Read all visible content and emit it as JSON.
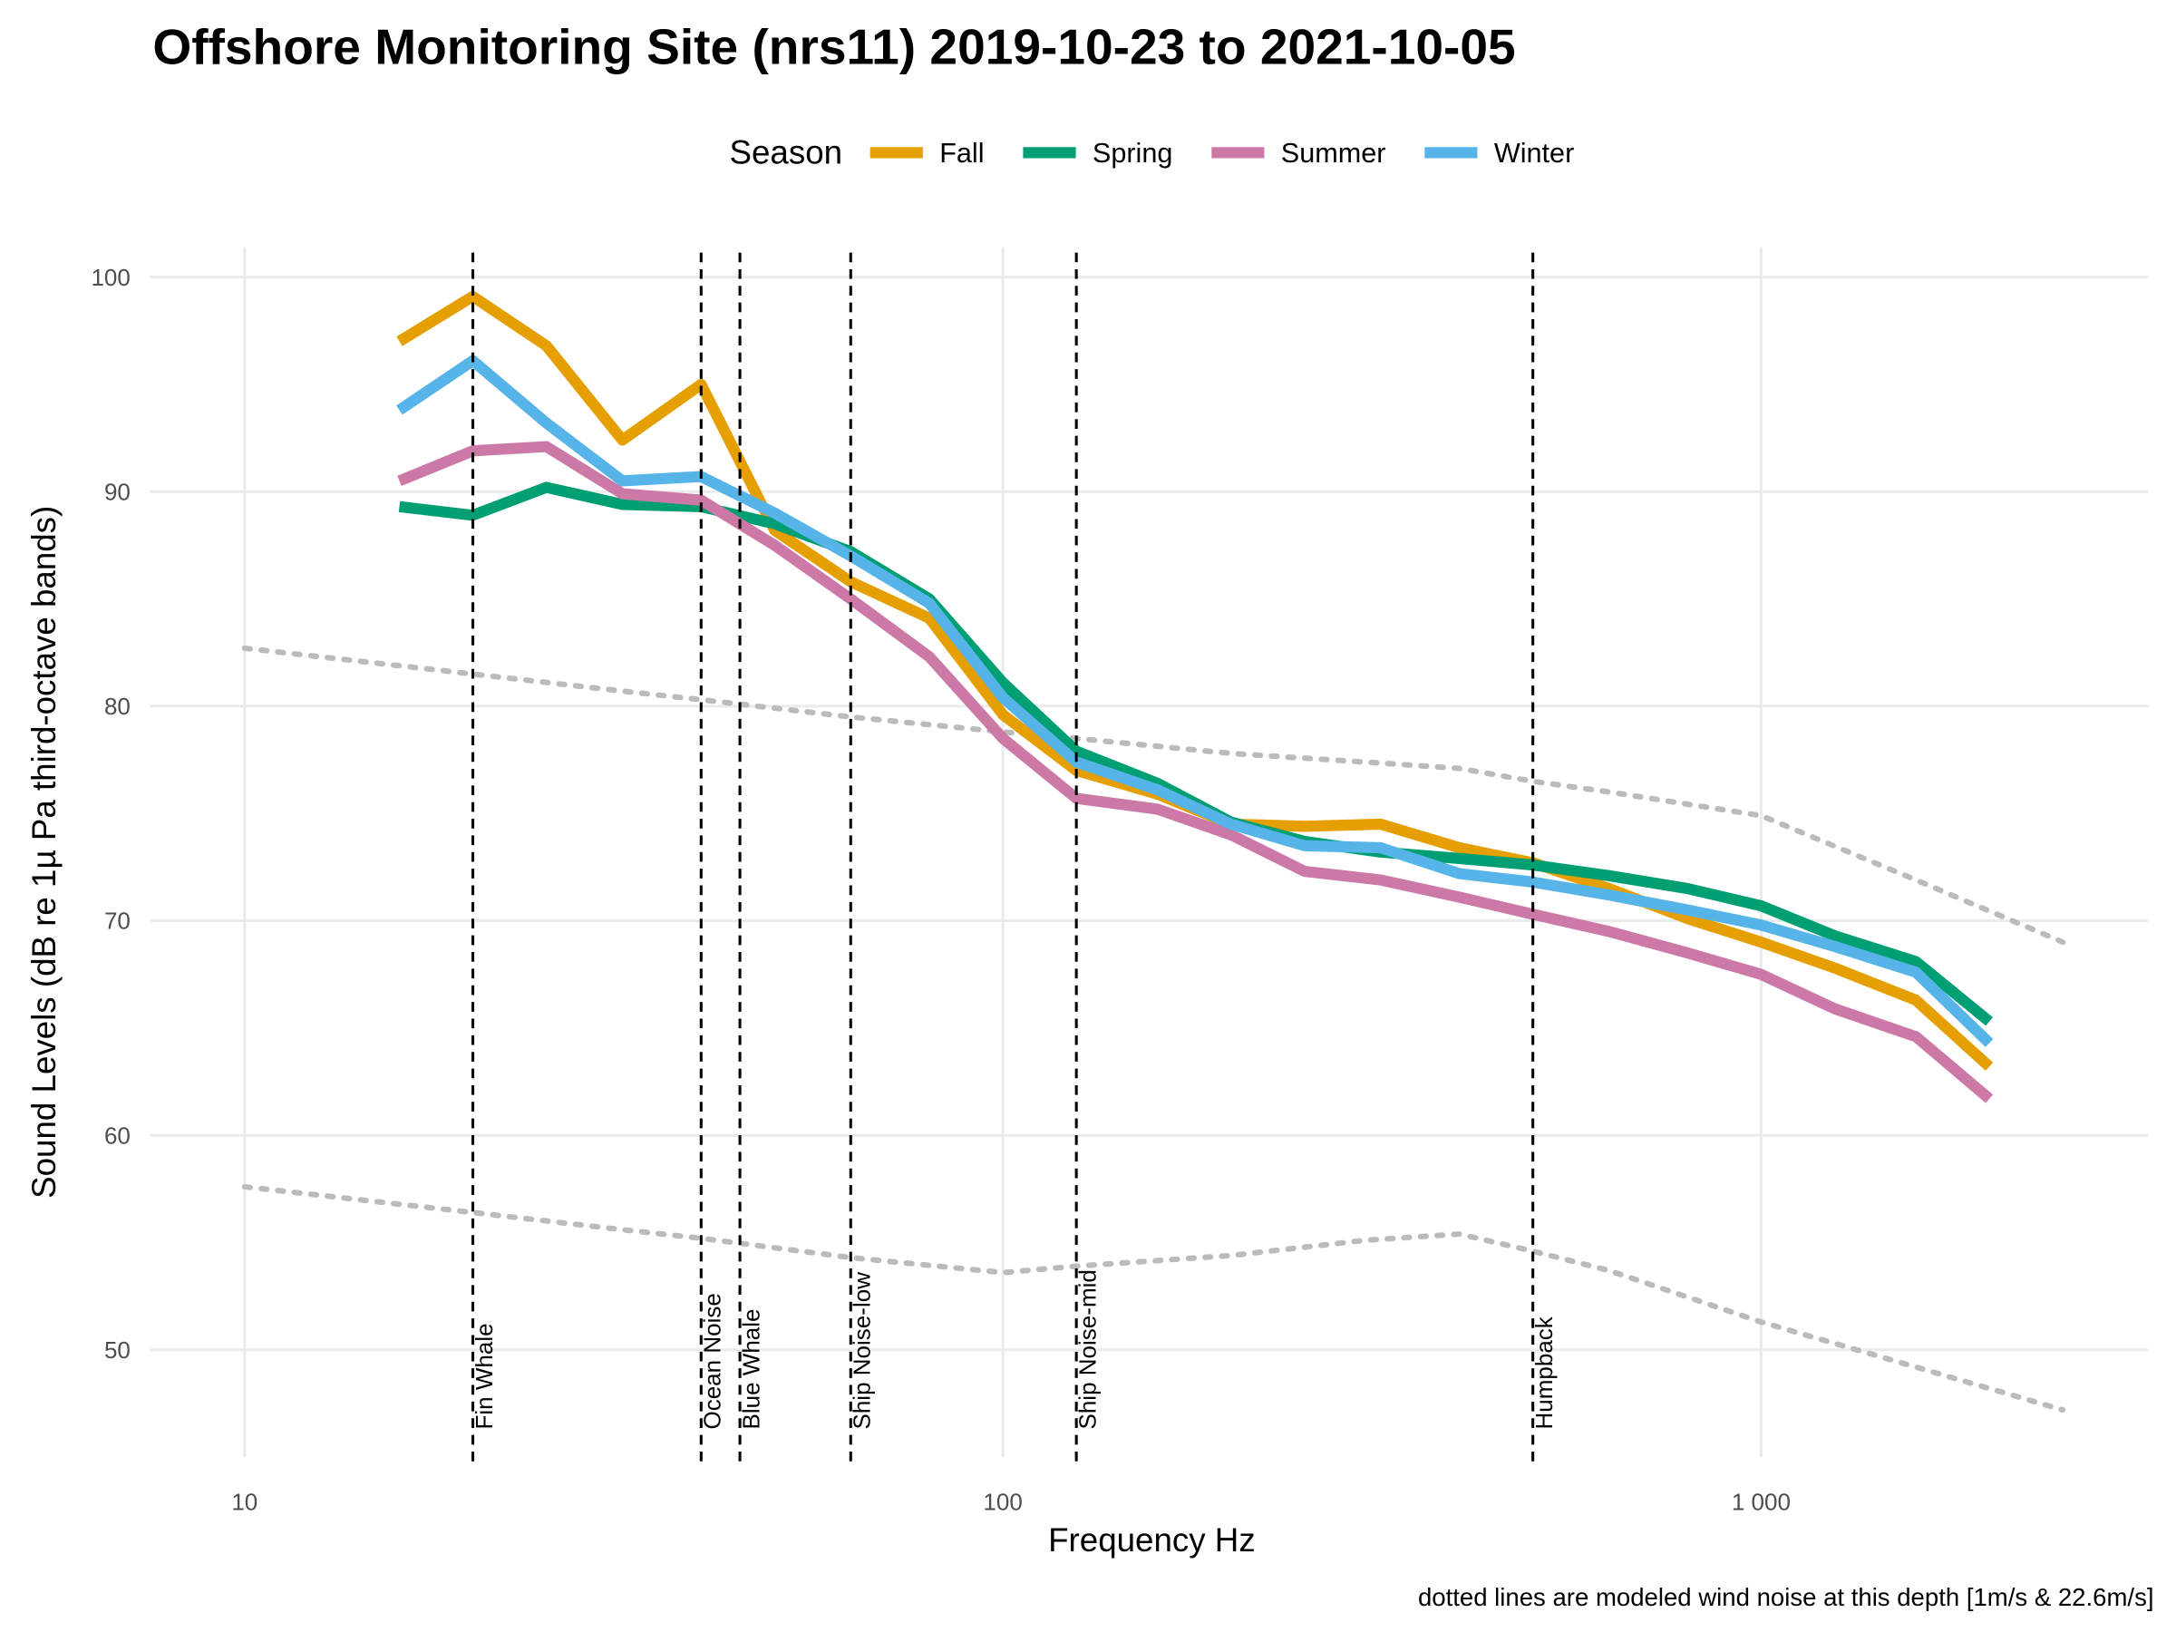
{
  "chart_data": {
    "type": "line",
    "title": "Offshore Monitoring Site (nrs11) 2019-10-23 to 2021-10-05",
    "x_label": "Frequency Hz",
    "y_label": "Sound Levels (dB re 1µ Pa third-octave bands)",
    "caption": "dotted lines are modeled wind noise at this depth [1m/s & 22.6m/s]",
    "legend_title": "Season",
    "legend_position": "top",
    "x_scale": "log",
    "grid": true,
    "xlim": [
      7.5,
      3240
    ],
    "ylim": [
      45,
      101.4
    ],
    "xticks": [
      10,
      100,
      {
        "value": 1000,
        "label": "1 000"
      }
    ],
    "yticks": [
      50,
      60,
      70,
      80,
      90,
      100
    ],
    "x": [
      16,
      20,
      25,
      31.5,
      40,
      50,
      63,
      80,
      100,
      125,
      160,
      200,
      250,
      315,
      400,
      500,
      630,
      800,
      1000,
      1250,
      1600,
      2000
    ],
    "series": [
      {
        "name": "Fall",
        "color": "#E69F00",
        "values": [
          97.0,
          99.1,
          96.8,
          92.4,
          95.0,
          88.2,
          85.8,
          84.1,
          79.6,
          77.0,
          75.9,
          74.5,
          74.4,
          74.5,
          73.4,
          72.7,
          71.5,
          70.1,
          69.0,
          67.8,
          66.3,
          63.2
        ]
      },
      {
        "name": "Spring",
        "color": "#009E73",
        "values": [
          89.3,
          88.9,
          90.2,
          89.4,
          89.3,
          88.5,
          87.2,
          85.0,
          81.1,
          77.9,
          76.4,
          74.6,
          73.7,
          73.2,
          72.9,
          72.6,
          72.1,
          71.5,
          70.7,
          69.3,
          68.1,
          65.3
        ]
      },
      {
        "name": "Summer",
        "color": "#CC79A7",
        "values": [
          90.5,
          91.9,
          92.1,
          89.9,
          89.6,
          87.5,
          85.0,
          82.3,
          78.5,
          75.7,
          75.2,
          74.0,
          72.3,
          71.9,
          71.1,
          70.3,
          69.5,
          68.5,
          67.5,
          65.9,
          64.6,
          61.7
        ]
      },
      {
        "name": "Winter",
        "color": "#56B4E9",
        "values": [
          93.8,
          96.1,
          93.2,
          90.5,
          90.7,
          89.0,
          87.0,
          84.8,
          80.4,
          77.4,
          76.1,
          74.5,
          73.5,
          73.4,
          72.2,
          71.8,
          71.2,
          70.5,
          69.8,
          68.8,
          67.6,
          64.3
        ]
      }
    ],
    "wind_noise": {
      "color": "#bbbbbb",
      "x": [
        10,
        20,
        31.5,
        40,
        63,
        100,
        125,
        200,
        300,
        400,
        500,
        630,
        1000,
        1600,
        2500
      ],
      "lines": [
        {
          "values": [
            82.7,
            81.5,
            80.7,
            80.3,
            79.5,
            78.8,
            78.5,
            77.8,
            77.4,
            77.1,
            76.5,
            76.0,
            74.9,
            71.9,
            69.0
          ]
        },
        {
          "values": [
            57.6,
            56.4,
            55.6,
            55.2,
            54.3,
            53.6,
            53.9,
            54.4,
            55.1,
            55.4,
            54.6,
            53.7,
            51.3,
            49.2,
            47.2
          ]
        }
      ]
    },
    "markers": [
      {
        "x": 20,
        "label": "Fin Whale"
      },
      {
        "x": 40,
        "label": "Ocean Noise"
      },
      {
        "x": 45,
        "label": "Blue Whale"
      },
      {
        "x": 63,
        "label": "Ship Noise-low"
      },
      {
        "x": 125,
        "label": "Ship Noise-mid"
      },
      {
        "x": 500,
        "label": "Humpback"
      }
    ]
  }
}
